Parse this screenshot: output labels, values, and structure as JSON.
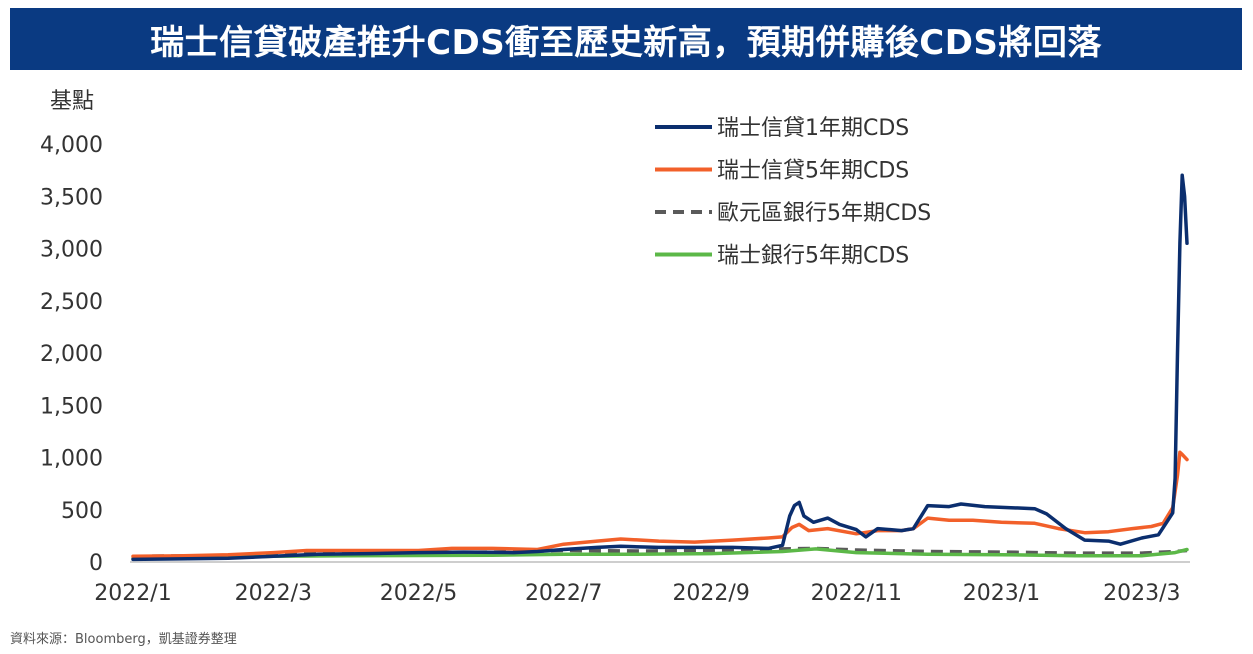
{
  "title": "瑞士信貸破產推升CDS衝至歷史新高，預期併購後CDS將回落",
  "source": "資料來源：Bloomberg，凱基證券整理",
  "chart_data": {
    "type": "line",
    "ylabel": "基點",
    "ylim": [
      0,
      4000
    ],
    "yticks": [
      0,
      500,
      1000,
      1500,
      2000,
      2500,
      3000,
      3500,
      4000
    ],
    "ytick_labels": [
      "0",
      "500",
      "1,000",
      "1,500",
      "2,000",
      "2,500",
      "3,000",
      "3,500",
      "4,000"
    ],
    "xticks": [
      "2022/1",
      "2022/3",
      "2022/5",
      "2022/7",
      "2022/9",
      "2022/11",
      "2023/1",
      "2023/3"
    ],
    "grid": false,
    "legend_position": "top-right",
    "series": [
      {
        "name": "瑞士信貸1年期CDS",
        "color": "#0b2e6e",
        "dash": "solid",
        "points": [
          [
            "2022-01-01",
            25
          ],
          [
            "2022-01-20",
            30
          ],
          [
            "2022-02-10",
            35
          ],
          [
            "2022-03-01",
            55
          ],
          [
            "2022-03-20",
            75
          ],
          [
            "2022-04-10",
            80
          ],
          [
            "2022-05-01",
            90
          ],
          [
            "2022-05-20",
            95
          ],
          [
            "2022-06-10",
            90
          ],
          [
            "2022-06-20",
            100
          ],
          [
            "2022-07-01",
            120
          ],
          [
            "2022-07-15",
            140
          ],
          [
            "2022-07-25",
            150
          ],
          [
            "2022-08-10",
            140
          ],
          [
            "2022-08-25",
            140
          ],
          [
            "2022-09-10",
            140
          ],
          [
            "2022-09-25",
            130
          ],
          [
            "2022-10-01",
            160
          ],
          [
            "2022-10-04",
            440
          ],
          [
            "2022-10-06",
            540
          ],
          [
            "2022-10-08",
            570
          ],
          [
            "2022-10-10",
            440
          ],
          [
            "2022-10-14",
            380
          ],
          [
            "2022-10-20",
            420
          ],
          [
            "2022-10-25",
            360
          ],
          [
            "2022-11-01",
            310
          ],
          [
            "2022-11-05",
            240
          ],
          [
            "2022-11-10",
            320
          ],
          [
            "2022-11-20",
            300
          ],
          [
            "2022-11-25",
            320
          ],
          [
            "2022-12-01",
            540
          ],
          [
            "2022-12-10",
            530
          ],
          [
            "2022-12-15",
            555
          ],
          [
            "2022-12-25",
            530
          ],
          [
            "2023-01-05",
            520
          ],
          [
            "2023-01-15",
            510
          ],
          [
            "2023-01-20",
            460
          ],
          [
            "2023-01-28",
            320
          ],
          [
            "2023-02-05",
            210
          ],
          [
            "2023-02-15",
            200
          ],
          [
            "2023-02-20",
            170
          ],
          [
            "2023-03-01",
            230
          ],
          [
            "2023-03-08",
            260
          ],
          [
            "2023-03-10",
            330
          ],
          [
            "2023-03-14",
            470
          ],
          [
            "2023-03-15",
            800
          ],
          [
            "2023-03-16",
            2000
          ],
          [
            "2023-03-17",
            3050
          ],
          [
            "2023-03-18",
            3700
          ],
          [
            "2023-03-19",
            3500
          ],
          [
            "2023-03-20",
            3050
          ]
        ]
      },
      {
        "name": "瑞士信貸5年期CDS",
        "color": "#f2602a",
        "dash": "solid",
        "points": [
          [
            "2022-01-01",
            55
          ],
          [
            "2022-01-20",
            58
          ],
          [
            "2022-02-10",
            70
          ],
          [
            "2022-03-01",
            90
          ],
          [
            "2022-03-15",
            110
          ],
          [
            "2022-04-10",
            110
          ],
          [
            "2022-05-01",
            110
          ],
          [
            "2022-05-15",
            130
          ],
          [
            "2022-06-01",
            130
          ],
          [
            "2022-06-20",
            120
          ],
          [
            "2022-07-01",
            170
          ],
          [
            "2022-07-15",
            200
          ],
          [
            "2022-07-25",
            220
          ],
          [
            "2022-08-10",
            200
          ],
          [
            "2022-08-25",
            190
          ],
          [
            "2022-09-10",
            210
          ],
          [
            "2022-09-25",
            230
          ],
          [
            "2022-10-01",
            240
          ],
          [
            "2022-10-05",
            330
          ],
          [
            "2022-10-08",
            360
          ],
          [
            "2022-10-12",
            300
          ],
          [
            "2022-10-20",
            320
          ],
          [
            "2022-11-01",
            270
          ],
          [
            "2022-11-10",
            300
          ],
          [
            "2022-11-20",
            300
          ],
          [
            "2022-11-25",
            320
          ],
          [
            "2022-12-01",
            420
          ],
          [
            "2022-12-10",
            400
          ],
          [
            "2022-12-20",
            400
          ],
          [
            "2023-01-01",
            380
          ],
          [
            "2023-01-15",
            370
          ],
          [
            "2023-01-25",
            320
          ],
          [
            "2023-02-05",
            280
          ],
          [
            "2023-02-15",
            290
          ],
          [
            "2023-02-25",
            320
          ],
          [
            "2023-03-05",
            340
          ],
          [
            "2023-03-10",
            370
          ],
          [
            "2023-03-14",
            520
          ],
          [
            "2023-03-16",
            830
          ],
          [
            "2023-03-17",
            1050
          ],
          [
            "2023-03-18",
            1030
          ],
          [
            "2023-03-20",
            980
          ]
        ]
      },
      {
        "name": "歐元區銀行5年期CDS",
        "color": "#5a5a5a",
        "dash": "dashed",
        "points": [
          [
            "2022-01-01",
            55
          ],
          [
            "2022-02-01",
            60
          ],
          [
            "2022-03-01",
            80
          ],
          [
            "2022-04-01",
            85
          ],
          [
            "2022-05-01",
            90
          ],
          [
            "2022-06-01",
            95
          ],
          [
            "2022-07-01",
            110
          ],
          [
            "2022-08-01",
            105
          ],
          [
            "2022-09-01",
            110
          ],
          [
            "2022-10-01",
            125
          ],
          [
            "2022-10-15",
            130
          ],
          [
            "2022-11-01",
            115
          ],
          [
            "2022-12-01",
            100
          ],
          [
            "2023-01-01",
            95
          ],
          [
            "2023-02-01",
            85
          ],
          [
            "2023-03-01",
            85
          ],
          [
            "2023-03-15",
            100
          ],
          [
            "2023-03-20",
            110
          ]
        ]
      },
      {
        "name": "瑞士銀行5年期CDS",
        "color": "#5cb848",
        "dash": "solid",
        "points": [
          [
            "2022-01-01",
            35
          ],
          [
            "2022-02-01",
            40
          ],
          [
            "2022-03-01",
            55
          ],
          [
            "2022-04-01",
            60
          ],
          [
            "2022-05-01",
            62
          ],
          [
            "2022-06-01",
            65
          ],
          [
            "2022-07-01",
            75
          ],
          [
            "2022-08-01",
            75
          ],
          [
            "2022-09-01",
            80
          ],
          [
            "2022-10-01",
            100
          ],
          [
            "2022-10-15",
            125
          ],
          [
            "2022-11-01",
            90
          ],
          [
            "2022-12-01",
            75
          ],
          [
            "2023-01-01",
            70
          ],
          [
            "2023-02-01",
            60
          ],
          [
            "2023-03-01",
            60
          ],
          [
            "2023-03-15",
            90
          ],
          [
            "2023-03-20",
            120
          ]
        ]
      }
    ]
  }
}
